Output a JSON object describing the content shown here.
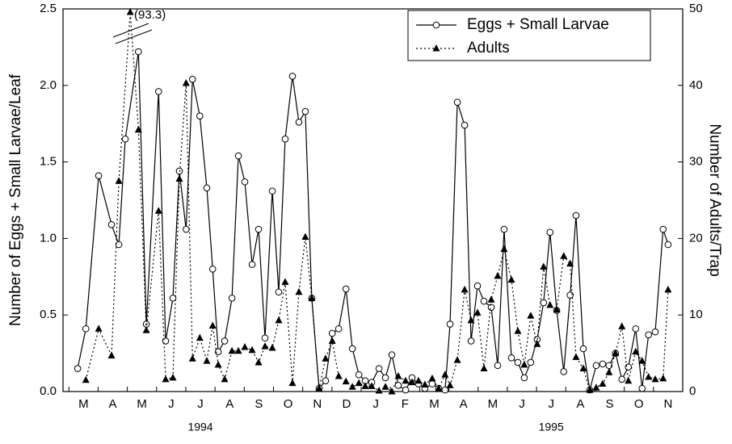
{
  "chart_data": {
    "type": "line",
    "y_label": "Number of Eggs + Small Larvae/Leaf",
    "y2_label": "Number of Adults/Trap",
    "annotation": "(93.3)",
    "month_labels": [
      "M",
      "A",
      "M",
      "J",
      "J",
      "A",
      "S",
      "O",
      "N",
      "D",
      "J",
      "F",
      "M",
      "A",
      "M",
      "J",
      "J",
      "A",
      "S",
      "O",
      "N"
    ],
    "year_labels": [
      "1994",
      "1995"
    ],
    "xlim": [
      -0.2,
      21
    ],
    "xticks": [
      0,
      1,
      2,
      3,
      4,
      5,
      6,
      7,
      8,
      9,
      10,
      11,
      12,
      13,
      14,
      15,
      16,
      17,
      18,
      19,
      20,
      21
    ],
    "ylim": [
      0,
      2.5
    ],
    "yticks": [
      {
        "value": 0,
        "label": "0.0"
      },
      {
        "value": 0.5,
        "label": "0.5"
      },
      {
        "value": 1,
        "label": "1.0"
      },
      {
        "value": 1.5,
        "label": "1.5"
      },
      {
        "value": 2,
        "label": "2.0"
      },
      {
        "value": 2.5,
        "label": "2.5"
      }
    ],
    "y2lim": [
      0,
      50
    ],
    "y2ticks": [
      0,
      10,
      20,
      30,
      40,
      50
    ],
    "legend": "upper right",
    "series": [
      {
        "name": "Eggs + Small Larvae",
        "color": "#000000",
        "marker": "circle",
        "dash": "solid",
        "x": [
          0.3,
          0.58,
          1.02,
          1.46,
          1.71,
          1.93,
          2.38,
          2.65,
          3.07,
          3.31,
          3.56,
          3.78,
          4.01,
          4.23,
          4.48,
          4.72,
          4.92,
          5.11,
          5.33,
          5.58,
          5.8,
          6.02,
          6.27,
          6.49,
          6.71,
          6.96,
          7.18,
          7.4,
          7.65,
          7.87,
          8.09,
          8.31,
          8.56,
          8.78,
          9.01,
          9.23,
          9.48,
          9.7,
          9.92,
          10.14,
          10.36,
          10.61,
          10.83,
          11.05,
          11.27,
          11.52,
          11.74,
          11.96,
          12.18,
          12.43,
          12.65,
          12.87,
          13.04,
          13.29,
          13.54,
          13.76,
          13.98,
          14.2,
          14.45,
          14.67,
          14.89,
          15.14,
          15.36,
          15.58,
          15.8,
          16.02,
          16.24,
          16.46,
          16.69,
          16.93,
          17.15,
          17.35,
          17.6,
          17.82,
          18.04,
          18.26,
          18.48,
          18.7,
          18.92,
          19.14,
          19.39,
          19.61,
          19.83,
          20.06,
          20.33,
          20.5
        ],
        "values": [
          0.15,
          0.41,
          1.41,
          1.09,
          0.96,
          1.65,
          2.22,
          0.44,
          1.96,
          0.33,
          0.61,
          1.44,
          1.06,
          2.04,
          1.8,
          1.33,
          0.8,
          0.26,
          0.33,
          0.61,
          1.54,
          1.37,
          0.83,
          1.06,
          0.35,
          1.31,
          0.65,
          1.65,
          2.06,
          1.76,
          1.83,
          0.61,
          0.02,
          0.07,
          0.38,
          0.41,
          0.67,
          0.28,
          0.11,
          0.07,
          0.06,
          0.15,
          0.09,
          0.24,
          0.04,
          0.01,
          0.09,
          0.05,
          0.02,
          0.05,
          0.02,
          0.01,
          0.44,
          1.89,
          1.74,
          0.33,
          0.69,
          0.59,
          0.55,
          0.17,
          1.06,
          0.22,
          0.19,
          0.09,
          0.19,
          0.34,
          0.58,
          1.04,
          0.53,
          0.13,
          0.63,
          1.15,
          0.28,
          0.01,
          0.17,
          0.18,
          0.17,
          0.25,
          0.08,
          0.16,
          0.41,
          0.02,
          0.37,
          0.39,
          1.06,
          0.96
        ]
      },
      {
        "name": "Adults",
        "color": "#000000",
        "marker": "triangle",
        "dash": "dotted",
        "axis": "y2",
        "x": [
          0.58,
          1.02,
          1.46,
          1.71,
          2.1,
          2.38,
          2.65,
          3.07,
          3.31,
          3.56,
          3.78,
          4.01,
          4.23,
          4.48,
          4.72,
          4.92,
          5.11,
          5.33,
          5.58,
          5.8,
          6.02,
          6.27,
          6.49,
          6.71,
          6.96,
          7.18,
          7.4,
          7.65,
          7.87,
          8.09,
          8.31,
          8.56,
          8.78,
          9.01,
          9.23,
          9.48,
          9.7,
          9.92,
          10.14,
          10.36,
          10.61,
          10.83,
          11.05,
          11.27,
          11.52,
          11.74,
          11.96,
          12.18,
          12.43,
          12.65,
          12.87,
          13.04,
          13.29,
          13.54,
          13.76,
          13.98,
          14.2,
          14.45,
          14.67,
          14.89,
          15.14,
          15.36,
          15.58,
          15.8,
          16.02,
          16.24,
          16.46,
          16.69,
          16.93,
          17.15,
          17.35,
          17.6,
          17.82,
          18.04,
          18.26,
          18.48,
          18.7,
          18.92,
          19.14,
          19.39,
          19.61,
          19.83,
          20.06,
          20.33,
          20.5
        ],
        "values": [
          1.5,
          8.2,
          4.7,
          27.5,
          93.3,
          34.2,
          8.0,
          23.6,
          1.6,
          1.8,
          27.8,
          40.3,
          4.3,
          7.0,
          4.0,
          8.6,
          3.5,
          1.6,
          5.3,
          5.3,
          5.8,
          5.4,
          3.8,
          5.9,
          5.7,
          9.3,
          14.3,
          1.1,
          13.0,
          20.2,
          12.2,
          0.4,
          4.3,
          6.6,
          2.0,
          1.3,
          0.6,
          1.1,
          0.7,
          0.7,
          0.1,
          0.6,
          0.0,
          2.0,
          1.4,
          1.2,
          1.4,
          0.9,
          1.7,
          0.4,
          2.2,
          0.8,
          4.1,
          13.3,
          9.3,
          10.3,
          3.0,
          12.0,
          15.1,
          18.6,
          14.6,
          7.9,
          3.5,
          9.9,
          6.2,
          16.3,
          11.3,
          10.7,
          17.7,
          16.7,
          4.5,
          3.0,
          0.2,
          0.5,
          1.0,
          2.5,
          5.0,
          8.5,
          1.4,
          5.2,
          4.0,
          1.9,
          1.6,
          1.7,
          13.3
        ]
      }
    ]
  }
}
